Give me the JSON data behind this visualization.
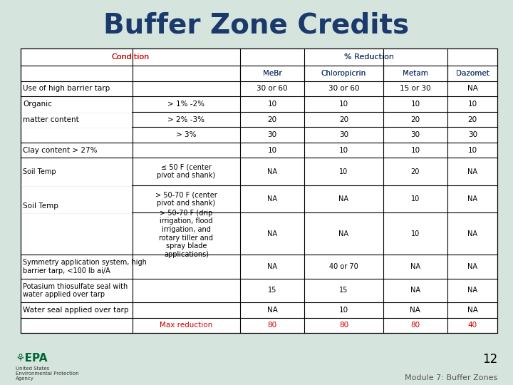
{
  "title": "Buffer Zone Credits",
  "title_color": "#1a3a6b",
  "title_fontsize": 28,
  "background_color": "#d6e4de",
  "table_background": "#ffffff",
  "header1_text": "Condition",
  "header1_color": "#cc0000",
  "header2_text": "% Reduction",
  "header2_color": "#1a3a6b",
  "sub_headers": [
    "MeBr",
    "Chloropicrin",
    "Metam",
    "Dazomet"
  ],
  "sub_header_color": "#1a3a6b",
  "footer_number": "12",
  "footer_module": "Module 7: Buffer Zones",
  "rows": [
    {
      "col1": "Use of high barrier tarp",
      "col2": "",
      "mebr": "30 or 60",
      "chloro": "30 or 60",
      "metam": "15 or 30",
      "dazomet": "NA",
      "span": true
    },
    {
      "col1": "Organic",
      "col2": "> 1% -2%",
      "mebr": "10",
      "chloro": "10",
      "metam": "10",
      "dazomet": "10",
      "span": false
    },
    {
      "col1": "matter content",
      "col2": "> 2% -3%",
      "mebr": "20",
      "chloro": "20",
      "metam": "20",
      "dazomet": "20",
      "span": false
    },
    {
      "col1": "",
      "col2": "> 3%",
      "mebr": "30",
      "chloro": "30",
      "metam": "30",
      "dazomet": "30",
      "span": false
    },
    {
      "col1": "Clay content > 27%",
      "col2": "",
      "mebr": "10",
      "chloro": "10",
      "metam": "10",
      "dazomet": "10",
      "span": true
    },
    {
      "col1": "Soil Temp",
      "col2": "≤ 50 F (center\npivot and shank)",
      "mebr": "NA",
      "chloro": "10",
      "metam": "20",
      "dazomet": "NA",
      "span": false
    },
    {
      "col1": "",
      "col2": "> 50-70 F (center\npivot and shank)",
      "mebr": "NA",
      "chloro": "NA",
      "metam": "10",
      "dazomet": "NA",
      "span": false
    },
    {
      "col1": "",
      "col2": "> 50-70 F (drip\nirrigation, flood\nirrigation, and\nrotary tiller and\nspray blade\napplications)",
      "mebr": "NA",
      "chloro": "NA",
      "metam": "10",
      "dazomet": "NA",
      "span": false
    },
    {
      "col1": "Symmetry application system, high\nbarrier tarp, <100 lb ai/A",
      "col2": "",
      "mebr": "NA",
      "chloro": "40 or 70",
      "metam": "NA",
      "dazomet": "NA",
      "span": true
    },
    {
      "col1": "Potasium thiosulfate seal with\nwater applied over tarp",
      "col2": "",
      "mebr": "15",
      "chloro": "15",
      "metam": "NA",
      "dazomet": "NA",
      "span": true
    },
    {
      "col1": "Water seal applied over tarp",
      "col2": "",
      "mebr": "NA",
      "chloro": "10",
      "metam": "NA",
      "dazomet": "NA",
      "span": true
    },
    {
      "col1": "",
      "col2": "Max reduction",
      "mebr": "80",
      "chloro": "80",
      "metam": "80",
      "dazomet": "40",
      "span": false,
      "is_footer": true,
      "col2_color": "#cc0000",
      "value_color": "#cc0000"
    }
  ]
}
